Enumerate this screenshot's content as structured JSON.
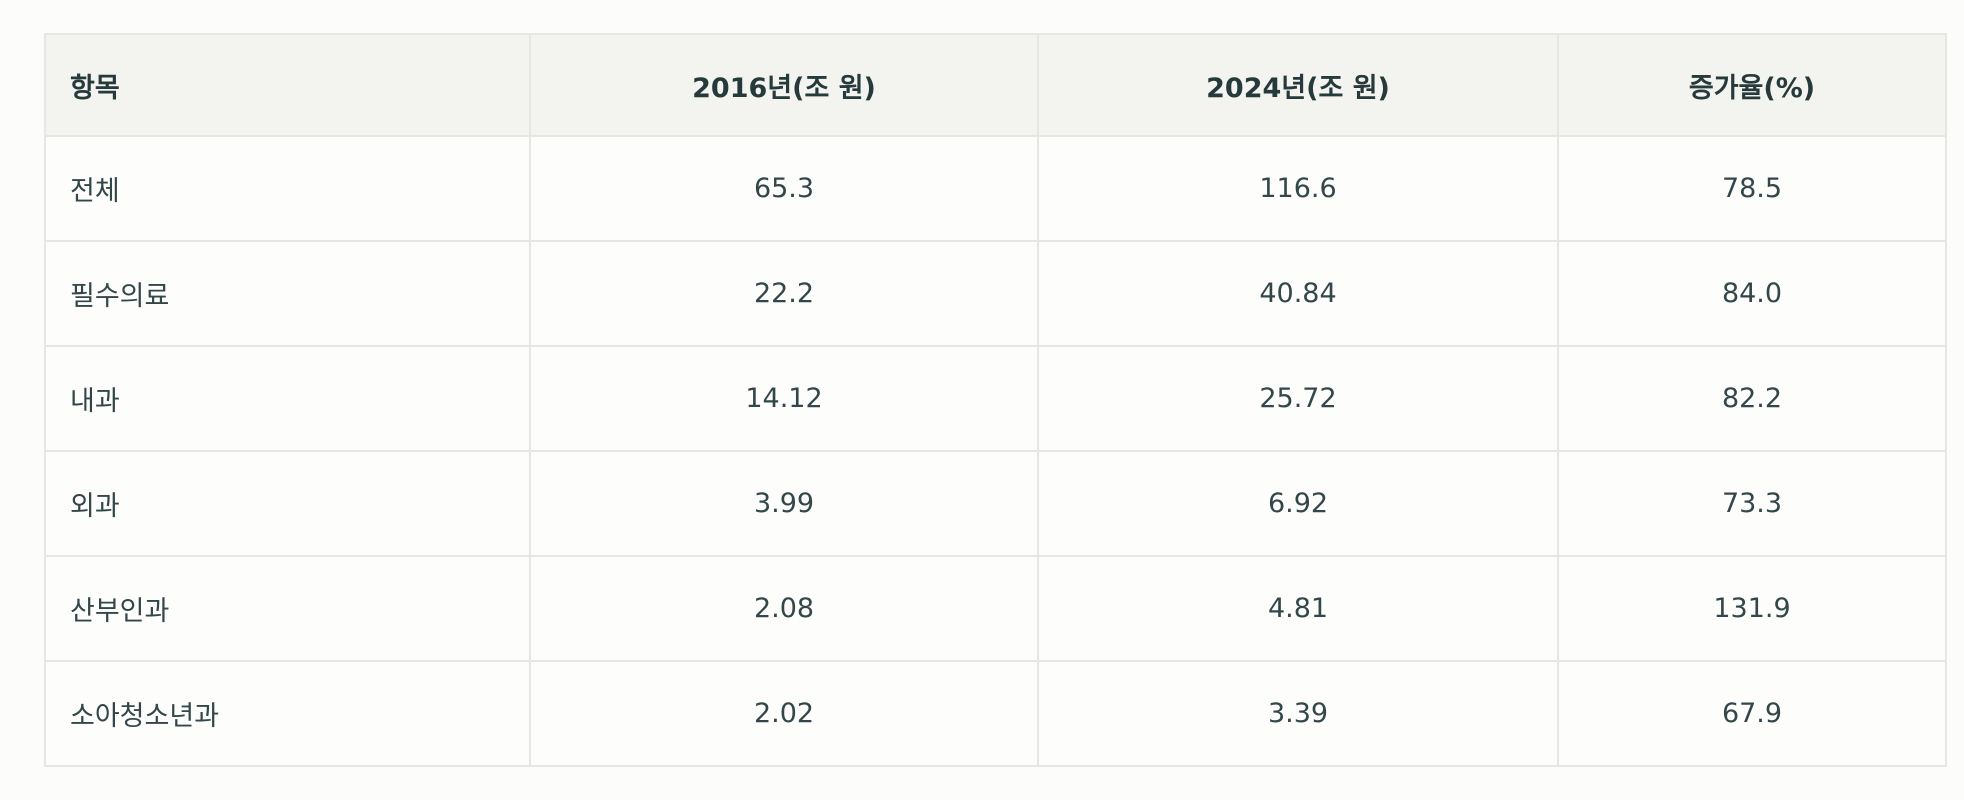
{
  "table": {
    "headers": [
      "항목",
      "2016년(조 원)",
      "2024년(조 원)",
      "증가율(%)"
    ],
    "rows": [
      [
        "전체",
        "65.3",
        "116.6",
        "78.5"
      ],
      [
        "필수의료",
        "22.2",
        "40.84",
        "84.0"
      ],
      [
        "내과",
        "14.12",
        "25.72",
        "82.2"
      ],
      [
        "외과",
        "3.99",
        "6.92",
        "73.3"
      ],
      [
        "산부인과",
        "2.08",
        "4.81",
        "131.9"
      ],
      [
        "소아청소년과",
        "2.02",
        "3.39",
        "67.9"
      ]
    ]
  },
  "colors": {
    "header_bg": "#f3f3f0",
    "border": "#e6e6e3",
    "text": "#26393b"
  }
}
